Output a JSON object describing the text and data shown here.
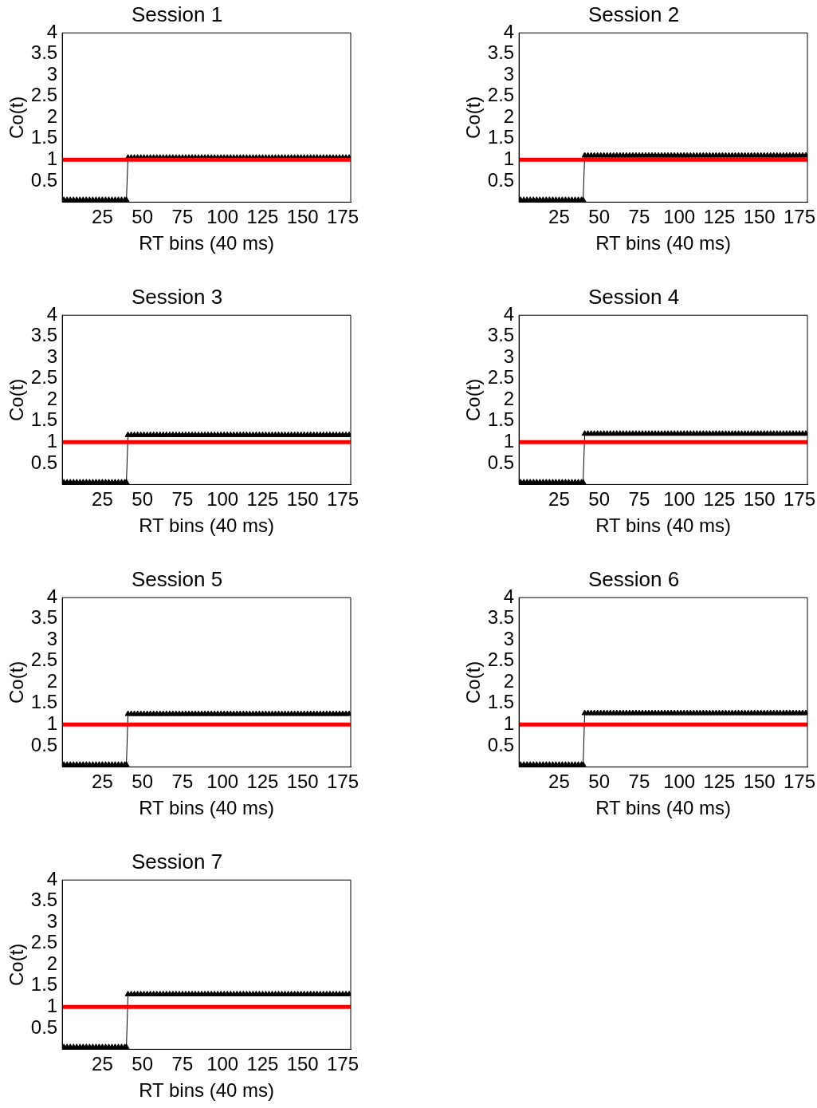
{
  "chart_data": [
    {
      "type": "line",
      "title": "Session 1",
      "xlabel": "RT bins (40 ms)",
      "ylabel": "Co(t)",
      "marker": "triangle",
      "xlim": [
        0,
        180
      ],
      "ylim": [
        0,
        4
      ],
      "xticks": [
        25,
        50,
        75,
        100,
        125,
        150,
        175
      ],
      "yticks": [
        0.5,
        1,
        1.5,
        2,
        2.5,
        3,
        3.5,
        4
      ],
      "ref_lines": [
        {
          "axis": "y",
          "value": 1,
          "color": "#ff0000"
        }
      ],
      "x": [
        1,
        3,
        5,
        7,
        9,
        11,
        13,
        15,
        17,
        19,
        21,
        23,
        25,
        27,
        29,
        31,
        33,
        35,
        37,
        39,
        40,
        41,
        43,
        45,
        47,
        49,
        51,
        53,
        55,
        57,
        59,
        61,
        63,
        65,
        67,
        69,
        71,
        73,
        75,
        77,
        79,
        81,
        83,
        85,
        87,
        89,
        91,
        93,
        95,
        97,
        99,
        101,
        103,
        105,
        107,
        109,
        111,
        113,
        115,
        117,
        119,
        121,
        123,
        125,
        127,
        129,
        131,
        133,
        135,
        137,
        139,
        141,
        143,
        145,
        147,
        149,
        151,
        153,
        155,
        157,
        159,
        161,
        163,
        165,
        167,
        169,
        171,
        173,
        175,
        177,
        179
      ],
      "series": [
        {
          "color": "#000000",
          "values": [
            0.05,
            0.05,
            0.05,
            0.05,
            0.05,
            0.05,
            0.05,
            0.05,
            0.05,
            0.05,
            0.05,
            0.05,
            0.05,
            0.05,
            0.05,
            0.05,
            0.05,
            0.05,
            0.05,
            0.05,
            0.05,
            1.05,
            1.05,
            1.05,
            1.05,
            1.05,
            1.05,
            1.05,
            1.05,
            1.05,
            1.05,
            1.05,
            1.05,
            1.05,
            1.05,
            1.05,
            1.05,
            1.05,
            1.05,
            1.05,
            1.05,
            1.05,
            1.05,
            1.05,
            1.05,
            1.05,
            1.05,
            1.05,
            1.05,
            1.05,
            1.05,
            1.05,
            1.05,
            1.05,
            1.05,
            1.05,
            1.05,
            1.05,
            1.05,
            1.05,
            1.05,
            1.05,
            1.05,
            1.05,
            1.05,
            1.05,
            1.05,
            1.05,
            1.05,
            1.05,
            1.05,
            1.05,
            1.05,
            1.05,
            1.05,
            1.05,
            1.05,
            1.05,
            1.05,
            1.05,
            1.05,
            1.05,
            1.05,
            1.05,
            1.05,
            1.05,
            1.05,
            1.05,
            1.05,
            1.05,
            1.05
          ]
        }
      ]
    },
    {
      "type": "line",
      "title": "Session 2",
      "xlabel": "RT bins (40 ms)",
      "ylabel": "Co(t)",
      "marker": "triangle",
      "xlim": [
        0,
        180
      ],
      "ylim": [
        0,
        4
      ],
      "xticks": [
        25,
        50,
        75,
        100,
        125,
        150,
        175
      ],
      "yticks": [
        0.5,
        1,
        1.5,
        2,
        2.5,
        3,
        3.5,
        4
      ],
      "ref_lines": [
        {
          "axis": "y",
          "value": 1,
          "color": "#ff0000"
        }
      ],
      "x": [
        1,
        3,
        5,
        7,
        9,
        11,
        13,
        15,
        17,
        19,
        21,
        23,
        25,
        27,
        29,
        31,
        33,
        35,
        37,
        39,
        40,
        41,
        43,
        45,
        47,
        49,
        51,
        53,
        55,
        57,
        59,
        61,
        63,
        65,
        67,
        69,
        71,
        73,
        75,
        77,
        79,
        81,
        83,
        85,
        87,
        89,
        91,
        93,
        95,
        97,
        99,
        101,
        103,
        105,
        107,
        109,
        111,
        113,
        115,
        117,
        119,
        121,
        123,
        125,
        127,
        129,
        131,
        133,
        135,
        137,
        139,
        141,
        143,
        145,
        147,
        149,
        151,
        153,
        155,
        157,
        159,
        161,
        163,
        165,
        167,
        169,
        171,
        173,
        175,
        177,
        179
      ],
      "series": [
        {
          "color": "#000000",
          "values": [
            0.05,
            0.05,
            0.05,
            0.05,
            0.05,
            0.05,
            0.05,
            0.05,
            0.05,
            0.05,
            0.05,
            0.05,
            0.05,
            0.05,
            0.05,
            0.05,
            0.05,
            0.05,
            0.05,
            0.05,
            0.05,
            1.1,
            1.1,
            1.1,
            1.1,
            1.1,
            1.1,
            1.1,
            1.1,
            1.1,
            1.1,
            1.1,
            1.1,
            1.1,
            1.1,
            1.1,
            1.1,
            1.1,
            1.1,
            1.1,
            1.1,
            1.1,
            1.1,
            1.1,
            1.1,
            1.1,
            1.1,
            1.1,
            1.1,
            1.1,
            1.1,
            1.1,
            1.1,
            1.1,
            1.1,
            1.1,
            1.1,
            1.1,
            1.1,
            1.1,
            1.1,
            1.1,
            1.1,
            1.1,
            1.1,
            1.1,
            1.1,
            1.1,
            1.1,
            1.1,
            1.1,
            1.1,
            1.1,
            1.1,
            1.1,
            1.1,
            1.1,
            1.1,
            1.1,
            1.1,
            1.1,
            1.1,
            1.1,
            1.1,
            1.1,
            1.1,
            1.1,
            1.1,
            1.1,
            1.1,
            1.1
          ]
        }
      ]
    },
    {
      "type": "line",
      "title": "Session 3",
      "xlabel": "RT bins (40 ms)",
      "ylabel": "Co(t)",
      "marker": "triangle",
      "xlim": [
        0,
        180
      ],
      "ylim": [
        0,
        4
      ],
      "xticks": [
        25,
        50,
        75,
        100,
        125,
        150,
        175
      ],
      "yticks": [
        0.5,
        1,
        1.5,
        2,
        2.5,
        3,
        3.5,
        4
      ],
      "ref_lines": [
        {
          "axis": "y",
          "value": 1,
          "color": "#ff0000"
        }
      ],
      "x": [
        1,
        3,
        5,
        7,
        9,
        11,
        13,
        15,
        17,
        19,
        21,
        23,
        25,
        27,
        29,
        31,
        33,
        35,
        37,
        39,
        40,
        41,
        43,
        45,
        47,
        49,
        51,
        53,
        55,
        57,
        59,
        61,
        63,
        65,
        67,
        69,
        71,
        73,
        75,
        77,
        79,
        81,
        83,
        85,
        87,
        89,
        91,
        93,
        95,
        97,
        99,
        101,
        103,
        105,
        107,
        109,
        111,
        113,
        115,
        117,
        119,
        121,
        123,
        125,
        127,
        129,
        131,
        133,
        135,
        137,
        139,
        141,
        143,
        145,
        147,
        149,
        151,
        153,
        155,
        157,
        159,
        161,
        163,
        165,
        167,
        169,
        171,
        173,
        175,
        177,
        179
      ],
      "series": [
        {
          "color": "#000000",
          "values": [
            0.05,
            0.05,
            0.05,
            0.05,
            0.05,
            0.05,
            0.05,
            0.05,
            0.05,
            0.05,
            0.05,
            0.05,
            0.05,
            0.05,
            0.05,
            0.05,
            0.05,
            0.05,
            0.05,
            0.05,
            0.05,
            1.17,
            1.17,
            1.17,
            1.17,
            1.17,
            1.17,
            1.17,
            1.17,
            1.17,
            1.17,
            1.17,
            1.17,
            1.17,
            1.17,
            1.17,
            1.17,
            1.17,
            1.17,
            1.17,
            1.17,
            1.17,
            1.17,
            1.17,
            1.17,
            1.17,
            1.17,
            1.17,
            1.17,
            1.17,
            1.17,
            1.17,
            1.17,
            1.17,
            1.17,
            1.17,
            1.17,
            1.17,
            1.17,
            1.17,
            1.17,
            1.17,
            1.17,
            1.17,
            1.17,
            1.17,
            1.17,
            1.17,
            1.17,
            1.17,
            1.17,
            1.17,
            1.17,
            1.17,
            1.17,
            1.17,
            1.17,
            1.17,
            1.17,
            1.17,
            1.17,
            1.17,
            1.17,
            1.17,
            1.17,
            1.17,
            1.17,
            1.17,
            1.17,
            1.17,
            1.17
          ]
        }
      ]
    },
    {
      "type": "line",
      "title": "Session 4",
      "xlabel": "RT bins (40 ms)",
      "ylabel": "Co(t)",
      "marker": "triangle",
      "xlim": [
        0,
        180
      ],
      "ylim": [
        0,
        4
      ],
      "xticks": [
        25,
        50,
        75,
        100,
        125,
        150,
        175
      ],
      "yticks": [
        0.5,
        1,
        1.5,
        2,
        2.5,
        3,
        3.5,
        4
      ],
      "ref_lines": [
        {
          "axis": "y",
          "value": 1,
          "color": "#ff0000"
        }
      ],
      "x": [
        1,
        3,
        5,
        7,
        9,
        11,
        13,
        15,
        17,
        19,
        21,
        23,
        25,
        27,
        29,
        31,
        33,
        35,
        37,
        39,
        40,
        41,
        43,
        45,
        47,
        49,
        51,
        53,
        55,
        57,
        59,
        61,
        63,
        65,
        67,
        69,
        71,
        73,
        75,
        77,
        79,
        81,
        83,
        85,
        87,
        89,
        91,
        93,
        95,
        97,
        99,
        101,
        103,
        105,
        107,
        109,
        111,
        113,
        115,
        117,
        119,
        121,
        123,
        125,
        127,
        129,
        131,
        133,
        135,
        137,
        139,
        141,
        143,
        145,
        147,
        149,
        151,
        153,
        155,
        157,
        159,
        161,
        163,
        165,
        167,
        169,
        171,
        173,
        175,
        177,
        179
      ],
      "series": [
        {
          "color": "#000000",
          "values": [
            0.05,
            0.05,
            0.05,
            0.05,
            0.05,
            0.05,
            0.05,
            0.05,
            0.05,
            0.05,
            0.05,
            0.05,
            0.05,
            0.05,
            0.05,
            0.05,
            0.05,
            0.05,
            0.05,
            0.05,
            0.05,
            1.2,
            1.2,
            1.2,
            1.2,
            1.2,
            1.2,
            1.2,
            1.2,
            1.2,
            1.2,
            1.2,
            1.2,
            1.2,
            1.2,
            1.2,
            1.2,
            1.2,
            1.2,
            1.2,
            1.2,
            1.2,
            1.2,
            1.2,
            1.2,
            1.2,
            1.2,
            1.2,
            1.2,
            1.2,
            1.2,
            1.2,
            1.2,
            1.2,
            1.2,
            1.2,
            1.2,
            1.2,
            1.2,
            1.2,
            1.2,
            1.2,
            1.2,
            1.2,
            1.2,
            1.2,
            1.2,
            1.2,
            1.2,
            1.2,
            1.2,
            1.2,
            1.2,
            1.2,
            1.2,
            1.2,
            1.2,
            1.2,
            1.2,
            1.2,
            1.2,
            1.2,
            1.2,
            1.2,
            1.2,
            1.2,
            1.2,
            1.2,
            1.2,
            1.2,
            1.2
          ]
        }
      ]
    },
    {
      "type": "line",
      "title": "Session 5",
      "xlabel": "RT bins (40 ms)",
      "ylabel": "Co(t)",
      "marker": "triangle",
      "xlim": [
        0,
        180
      ],
      "ylim": [
        0,
        4
      ],
      "xticks": [
        25,
        50,
        75,
        100,
        125,
        150,
        175
      ],
      "yticks": [
        0.5,
        1,
        1.5,
        2,
        2.5,
        3,
        3.5,
        4
      ],
      "ref_lines": [
        {
          "axis": "y",
          "value": 1,
          "color": "#ff0000"
        }
      ],
      "x": [
        1,
        3,
        5,
        7,
        9,
        11,
        13,
        15,
        17,
        19,
        21,
        23,
        25,
        27,
        29,
        31,
        33,
        35,
        37,
        39,
        40,
        41,
        43,
        45,
        47,
        49,
        51,
        53,
        55,
        57,
        59,
        61,
        63,
        65,
        67,
        69,
        71,
        73,
        75,
        77,
        79,
        81,
        83,
        85,
        87,
        89,
        91,
        93,
        95,
        97,
        99,
        101,
        103,
        105,
        107,
        109,
        111,
        113,
        115,
        117,
        119,
        121,
        123,
        125,
        127,
        129,
        131,
        133,
        135,
        137,
        139,
        141,
        143,
        145,
        147,
        149,
        151,
        153,
        155,
        157,
        159,
        161,
        163,
        165,
        167,
        169,
        171,
        173,
        175,
        177,
        179
      ],
      "series": [
        {
          "color": "#000000",
          "values": [
            0.05,
            0.05,
            0.05,
            0.05,
            0.05,
            0.05,
            0.05,
            0.05,
            0.05,
            0.05,
            0.05,
            0.05,
            0.05,
            0.05,
            0.05,
            0.05,
            0.05,
            0.05,
            0.05,
            0.05,
            0.05,
            1.25,
            1.25,
            1.25,
            1.25,
            1.25,
            1.25,
            1.25,
            1.25,
            1.25,
            1.25,
            1.25,
            1.25,
            1.25,
            1.25,
            1.25,
            1.25,
            1.25,
            1.25,
            1.25,
            1.25,
            1.25,
            1.25,
            1.25,
            1.25,
            1.25,
            1.25,
            1.25,
            1.25,
            1.25,
            1.25,
            1.25,
            1.25,
            1.25,
            1.25,
            1.25,
            1.25,
            1.25,
            1.25,
            1.25,
            1.25,
            1.25,
            1.25,
            1.25,
            1.25,
            1.25,
            1.25,
            1.25,
            1.25,
            1.25,
            1.25,
            1.25,
            1.25,
            1.25,
            1.25,
            1.25,
            1.25,
            1.25,
            1.25,
            1.25,
            1.25,
            1.25,
            1.25,
            1.25,
            1.25,
            1.25,
            1.25,
            1.25,
            1.25,
            1.25,
            1.25
          ]
        }
      ]
    },
    {
      "type": "line",
      "title": "Session 6",
      "xlabel": "RT bins (40 ms)",
      "ylabel": "Co(t)",
      "marker": "triangle",
      "xlim": [
        0,
        180
      ],
      "ylim": [
        0,
        4
      ],
      "xticks": [
        25,
        50,
        75,
        100,
        125,
        150,
        175
      ],
      "yticks": [
        0.5,
        1,
        1.5,
        2,
        2.5,
        3,
        3.5,
        4
      ],
      "ref_lines": [
        {
          "axis": "y",
          "value": 1,
          "color": "#ff0000"
        }
      ],
      "x": [
        1,
        3,
        5,
        7,
        9,
        11,
        13,
        15,
        17,
        19,
        21,
        23,
        25,
        27,
        29,
        31,
        33,
        35,
        37,
        39,
        40,
        41,
        43,
        45,
        47,
        49,
        51,
        53,
        55,
        57,
        59,
        61,
        63,
        65,
        67,
        69,
        71,
        73,
        75,
        77,
        79,
        81,
        83,
        85,
        87,
        89,
        91,
        93,
        95,
        97,
        99,
        101,
        103,
        105,
        107,
        109,
        111,
        113,
        115,
        117,
        119,
        121,
        123,
        125,
        127,
        129,
        131,
        133,
        135,
        137,
        139,
        141,
        143,
        145,
        147,
        149,
        151,
        153,
        155,
        157,
        159,
        161,
        163,
        165,
        167,
        169,
        171,
        173,
        175,
        177,
        179
      ],
      "series": [
        {
          "color": "#000000",
          "values": [
            0.05,
            0.05,
            0.05,
            0.05,
            0.05,
            0.05,
            0.05,
            0.05,
            0.05,
            0.05,
            0.05,
            0.05,
            0.05,
            0.05,
            0.05,
            0.05,
            0.05,
            0.05,
            0.05,
            0.05,
            0.05,
            1.27,
            1.27,
            1.27,
            1.27,
            1.27,
            1.27,
            1.27,
            1.27,
            1.27,
            1.27,
            1.27,
            1.27,
            1.27,
            1.27,
            1.27,
            1.27,
            1.27,
            1.27,
            1.27,
            1.27,
            1.27,
            1.27,
            1.27,
            1.27,
            1.27,
            1.27,
            1.27,
            1.27,
            1.27,
            1.27,
            1.27,
            1.27,
            1.27,
            1.27,
            1.27,
            1.27,
            1.27,
            1.27,
            1.27,
            1.27,
            1.27,
            1.27,
            1.27,
            1.27,
            1.27,
            1.27,
            1.27,
            1.27,
            1.27,
            1.27,
            1.27,
            1.27,
            1.27,
            1.27,
            1.27,
            1.27,
            1.27,
            1.27,
            1.27,
            1.27,
            1.27,
            1.27,
            1.27,
            1.27,
            1.27,
            1.27,
            1.27,
            1.27,
            1.27,
            1.27
          ]
        }
      ]
    },
    {
      "type": "line",
      "title": "Session 7",
      "xlabel": "RT bins (40 ms)",
      "ylabel": "Co(t)",
      "marker": "triangle",
      "xlim": [
        0,
        180
      ],
      "ylim": [
        0,
        4
      ],
      "xticks": [
        25,
        50,
        75,
        100,
        125,
        150,
        175
      ],
      "yticks": [
        0.5,
        1,
        1.5,
        2,
        2.5,
        3,
        3.5,
        4
      ],
      "ref_lines": [
        {
          "axis": "y",
          "value": 1,
          "color": "#ff0000"
        }
      ],
      "x": [
        1,
        3,
        5,
        7,
        9,
        11,
        13,
        15,
        17,
        19,
        21,
        23,
        25,
        27,
        29,
        31,
        33,
        35,
        37,
        39,
        40,
        41,
        43,
        45,
        47,
        49,
        51,
        53,
        55,
        57,
        59,
        61,
        63,
        65,
        67,
        69,
        71,
        73,
        75,
        77,
        79,
        81,
        83,
        85,
        87,
        89,
        91,
        93,
        95,
        97,
        99,
        101,
        103,
        105,
        107,
        109,
        111,
        113,
        115,
        117,
        119,
        121,
        123,
        125,
        127,
        129,
        131,
        133,
        135,
        137,
        139,
        141,
        143,
        145,
        147,
        149,
        151,
        153,
        155,
        157,
        159,
        161,
        163,
        165,
        167,
        169,
        171,
        173,
        175,
        177,
        179
      ],
      "series": [
        {
          "color": "#000000",
          "values": [
            0.05,
            0.05,
            0.05,
            0.05,
            0.05,
            0.05,
            0.05,
            0.05,
            0.05,
            0.05,
            0.05,
            0.05,
            0.05,
            0.05,
            0.05,
            0.05,
            0.05,
            0.05,
            0.05,
            0.05,
            0.05,
            1.3,
            1.3,
            1.3,
            1.3,
            1.3,
            1.3,
            1.3,
            1.3,
            1.3,
            1.3,
            1.3,
            1.3,
            1.3,
            1.3,
            1.3,
            1.3,
            1.3,
            1.3,
            1.3,
            1.3,
            1.3,
            1.3,
            1.3,
            1.3,
            1.3,
            1.3,
            1.3,
            1.3,
            1.3,
            1.3,
            1.3,
            1.3,
            1.3,
            1.3,
            1.3,
            1.3,
            1.3,
            1.3,
            1.3,
            1.3,
            1.3,
            1.3,
            1.3,
            1.3,
            1.3,
            1.3,
            1.3,
            1.3,
            1.3,
            1.3,
            1.3,
            1.3,
            1.3,
            1.3,
            1.3,
            1.3,
            1.3,
            1.3,
            1.3,
            1.3,
            1.3,
            1.3,
            1.3,
            1.3,
            1.3,
            1.3,
            1.3,
            1.3,
            1.3,
            1.3
          ]
        }
      ]
    }
  ]
}
